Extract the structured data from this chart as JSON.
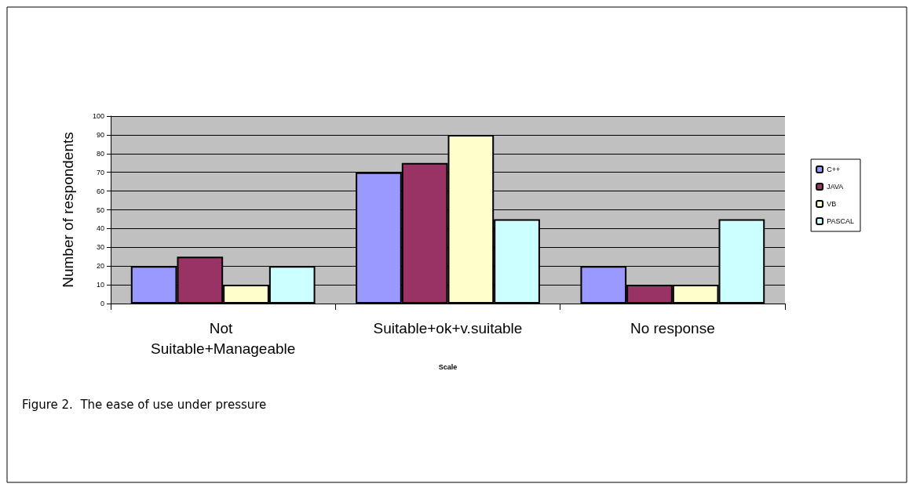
{
  "chart_data": {
    "type": "bar",
    "xlabel": "Scale",
    "ylabel": "Number of respondents",
    "categories": [
      "Not Suitable+Manageable",
      "Suitable+ok+v.suitable",
      "No response"
    ],
    "series": [
      {
        "name": "C++",
        "color": "#9999ff",
        "values": [
          20,
          70,
          20
        ]
      },
      {
        "name": "JAVA",
        "color": "#993366",
        "values": [
          25,
          75,
          10
        ]
      },
      {
        "name": "VB",
        "color": "#ffffcc",
        "values": [
          10,
          90,
          10
        ]
      },
      {
        "name": "PASCAL",
        "color": "#ccffff",
        "values": [
          20,
          45,
          45
        ]
      }
    ],
    "ylim": [
      0,
      100
    ],
    "yticks": [
      0,
      10,
      20,
      30,
      40,
      50,
      60,
      70,
      80,
      90,
      100
    ],
    "grid": "y",
    "legend": "right",
    "annotations": [
      "Figure 2.  The ease of use under pressure"
    ]
  }
}
